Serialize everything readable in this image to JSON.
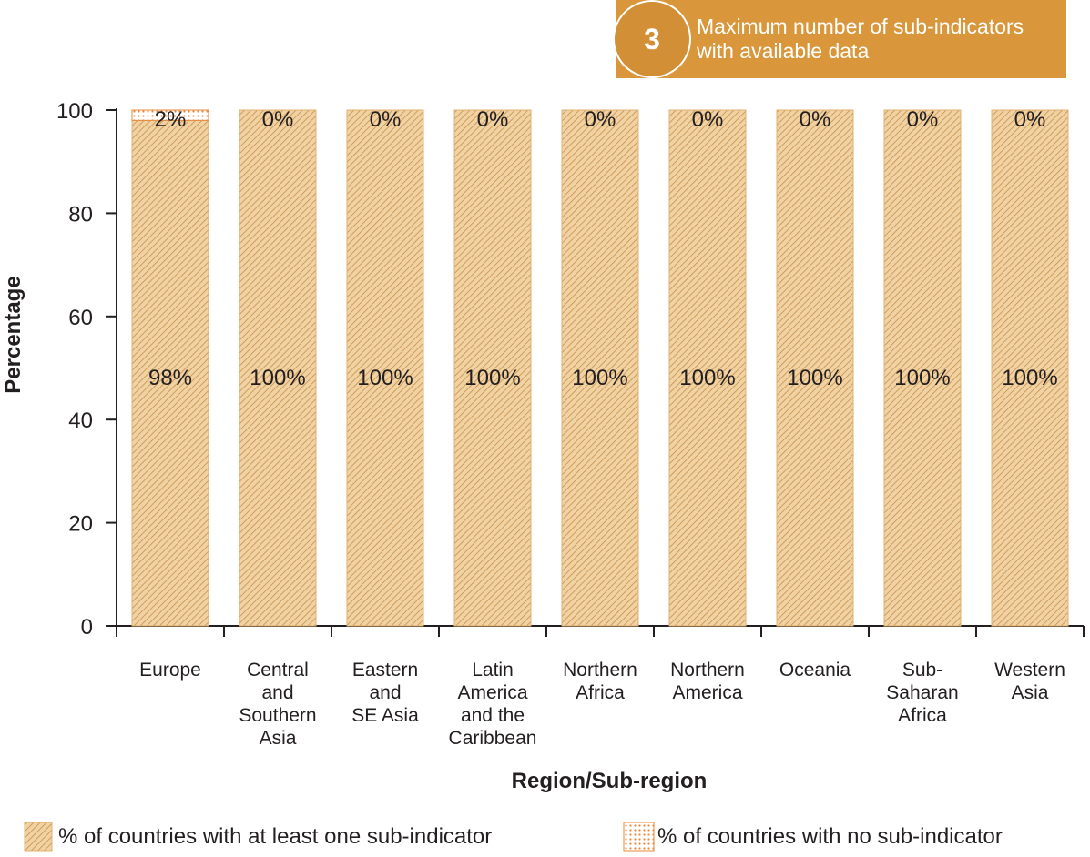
{
  "banner": {
    "number": "3",
    "text": "Maximum number of sub-indicators with available data"
  },
  "chart_data": {
    "type": "bar",
    "stacked": true,
    "xlabel": "Region/Sub-region",
    "ylabel": "Percentage",
    "ylim": [
      0,
      100
    ],
    "yticks": [
      0,
      20,
      40,
      60,
      80,
      100
    ],
    "categories": [
      "Europe",
      "Central and Southern Asia",
      "Eastern and SE Asia",
      "Latin America and the Caribbean",
      "Northern Africa",
      "Northern America",
      "Oceania",
      "Sub-Saharan Africa",
      "Western Asia"
    ],
    "category_lines": [
      [
        "Europe"
      ],
      [
        "Central",
        "and",
        "Southern",
        "Asia"
      ],
      [
        "Eastern",
        "and",
        "SE Asia"
      ],
      [
        "Latin",
        "America",
        "and the",
        "Caribbean"
      ],
      [
        "Northern",
        "Africa"
      ],
      [
        "Northern",
        "America"
      ],
      [
        "Oceania"
      ],
      [
        "Sub-",
        "Saharan",
        "Africa"
      ],
      [
        "Western",
        "Asia"
      ]
    ],
    "series": [
      {
        "name": "% of countries with at least one sub-indicator",
        "pattern": "diagonal-hatch",
        "color": "#d9a45c",
        "values": [
          98,
          100,
          100,
          100,
          100,
          100,
          100,
          100,
          100
        ],
        "labels": [
          "98%",
          "100%",
          "100%",
          "100%",
          "100%",
          "100%",
          "100%",
          "100%",
          "100%"
        ]
      },
      {
        "name": "% of countries with no sub-indicator",
        "pattern": "dots",
        "color": "#e8893a",
        "values": [
          2,
          0,
          0,
          0,
          0,
          0,
          0,
          0,
          0
        ],
        "labels": [
          "2%",
          "0%",
          "0%",
          "0%",
          "0%",
          "0%",
          "0%",
          "0%",
          "0%"
        ]
      }
    ],
    "grid": false,
    "legend_position": "bottom"
  }
}
